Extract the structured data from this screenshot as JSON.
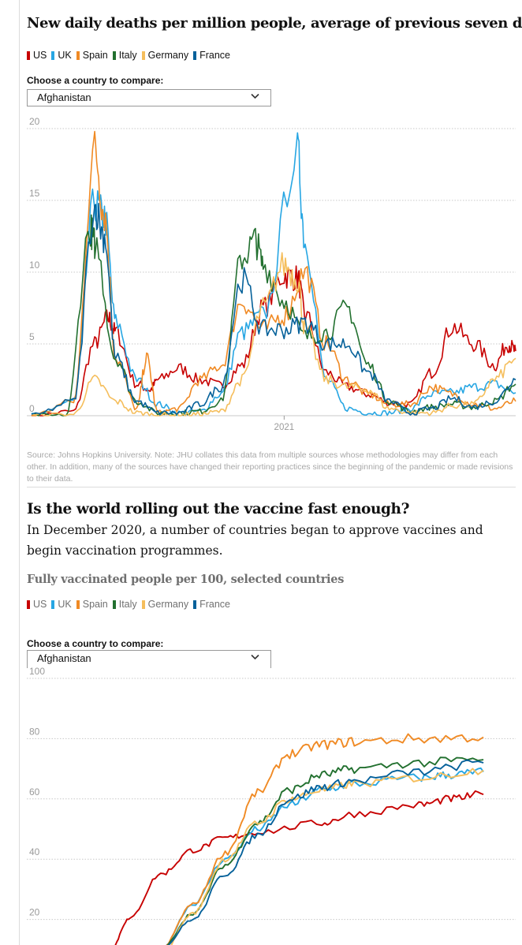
{
  "colors": {
    "US": "#c70000",
    "UK": "#27a6e3",
    "Spain": "#f08a24",
    "Italy": "#22702f",
    "Germany": "#f5be5c",
    "France": "#05619a"
  },
  "section1": {
    "title": "New daily deaths per million people, average of previous seven days",
    "legend": [
      "US",
      "UK",
      "Spain",
      "Italy",
      "Germany",
      "France"
    ],
    "choose_label": "Choose a country to compare:",
    "select_value": "Afghanistan",
    "source": "Source: Johns Hopkins University. Note: JHU collates this data from multiple sources whose methodologies may differ from each other. In addition, many of the sources have changed their reporting practices since the beginning of the pandemic or made revisions to their data."
  },
  "section2": {
    "title": "Is the world rolling out the vaccine fast enough?",
    "standfirst": "In December 2020, a number of countries began to approve vaccines and begin vaccination programmes.",
    "chart_title": "Fully vaccinated people per 100, selected countries",
    "legend": [
      "US",
      "UK",
      "Spain",
      "Italy",
      "Germany",
      "France"
    ],
    "choose_label": "Choose a country to compare:",
    "select_value": "Afghanistan"
  },
  "chart_data": [
    {
      "type": "line",
      "title": "New daily deaths per million people, average of previous seven days",
      "x_unit": "month",
      "x_range": [
        "2020-01",
        "2021-12"
      ],
      "x_ticks": [
        {
          "x": "2021-01",
          "label": "2021"
        }
      ],
      "ylim": [
        0,
        20
      ],
      "y_ticks": [
        0,
        5,
        10,
        15,
        20
      ],
      "grid": true,
      "legend_position": "top-left",
      "series": [
        {
          "name": "US",
          "points": [
            [
              "2020-01",
              0
            ],
            [
              "2020-03",
              0.3
            ],
            [
              "2020-04",
              5
            ],
            [
              "2020-04-20",
              6.8
            ],
            [
              "2020-05",
              5.8
            ],
            [
              "2020-06",
              2.2
            ],
            [
              "2020-06-20",
              1.8
            ],
            [
              "2020-07",
              2.5
            ],
            [
              "2020-08",
              3.3
            ],
            [
              "2020-09",
              2.5
            ],
            [
              "2020-10",
              2.1
            ],
            [
              "2020-11",
              3.5
            ],
            [
              "2020-12",
              7.5
            ],
            [
              "2021-01",
              9.8
            ],
            [
              "2021-01-20",
              9.6
            ],
            [
              "2021-02",
              7.0
            ],
            [
              "2021-03",
              3.0
            ],
            [
              "2021-04",
              2.0
            ],
            [
              "2021-05",
              1.5
            ],
            [
              "2021-06",
              0.9
            ],
            [
              "2021-07",
              0.8
            ],
            [
              "2021-08",
              3.0
            ],
            [
              "2021-09",
              6.2
            ],
            [
              "2021-10",
              5.0
            ],
            [
              "2021-11",
              3.5
            ],
            [
              "2021-11-20",
              5.0
            ],
            [
              "2021-12",
              4.5
            ]
          ]
        },
        {
          "name": "UK",
          "points": [
            [
              "2020-01",
              0
            ],
            [
              "2020-03",
              1.0
            ],
            [
              "2020-04",
              14.8
            ],
            [
              "2020-04-15",
              13.8
            ],
            [
              "2020-05",
              6.5
            ],
            [
              "2020-06",
              2.5
            ],
            [
              "2020-07",
              0.8
            ],
            [
              "2020-08",
              0.2
            ],
            [
              "2020-09",
              0.3
            ],
            [
              "2020-10",
              1.5
            ],
            [
              "2020-11",
              5.8
            ],
            [
              "2020-12",
              7.0
            ],
            [
              "2021-01-20",
              18.2
            ],
            [
              "2021-02",
              12.0
            ],
            [
              "2021-03",
              2.5
            ],
            [
              "2021-04",
              0.5
            ],
            [
              "2021-05",
              0.2
            ],
            [
              "2021-06",
              0.2
            ],
            [
              "2021-07",
              0.5
            ],
            [
              "2021-08",
              1.5
            ],
            [
              "2021-09",
              1.6
            ],
            [
              "2021-10",
              2.0
            ],
            [
              "2021-11",
              2.2
            ],
            [
              "2021-12",
              1.6
            ]
          ]
        },
        {
          "name": "Spain",
          "points": [
            [
              "2020-01",
              0
            ],
            [
              "2020-03",
              1.0
            ],
            [
              "2020-04",
              18.5
            ],
            [
              "2020-04-15",
              14.0
            ],
            [
              "2020-05",
              4.0
            ],
            [
              "2020-06",
              0.5
            ],
            [
              "2020-06-15",
              4.0
            ],
            [
              "2020-07",
              0.2
            ],
            [
              "2020-08",
              0.5
            ],
            [
              "2020-09",
              2.5
            ],
            [
              "2020-10",
              3.5
            ],
            [
              "2020-11",
              8.0
            ],
            [
              "2020-12",
              6.0
            ],
            [
              "2021-01",
              7.0
            ],
            [
              "2021-02",
              10.0
            ],
            [
              "2021-03",
              5.0
            ],
            [
              "2021-04",
              2.5
            ],
            [
              "2021-05",
              1.5
            ],
            [
              "2021-06",
              0.8
            ],
            [
              "2021-07",
              0.8
            ],
            [
              "2021-08",
              2.0
            ],
            [
              "2021-09",
              1.5
            ],
            [
              "2021-10",
              0.8
            ],
            [
              "2021-11",
              0.5
            ],
            [
              "2021-12",
              1.0
            ]
          ]
        },
        {
          "name": "Italy",
          "points": [
            [
              "2020-01",
              0
            ],
            [
              "2020-02-20",
              0
            ],
            [
              "2020-03-25",
              13.0
            ],
            [
              "2020-04",
              12.0
            ],
            [
              "2020-05",
              4.0
            ],
            [
              "2020-06",
              1.0
            ],
            [
              "2020-07",
              0.2
            ],
            [
              "2020-08",
              0.2
            ],
            [
              "2020-09",
              0.3
            ],
            [
              "2020-10",
              1.0
            ],
            [
              "2020-11",
              11.0
            ],
            [
              "2020-11-20",
              12.2
            ],
            [
              "2020-12",
              10.5
            ],
            [
              "2021-01",
              8.0
            ],
            [
              "2021-02",
              5.5
            ],
            [
              "2021-03",
              5.8
            ],
            [
              "2021-04",
              7.5
            ],
            [
              "2021-05",
              3.5
            ],
            [
              "2021-06",
              1.0
            ],
            [
              "2021-07",
              0.3
            ],
            [
              "2021-08",
              0.6
            ],
            [
              "2021-09",
              0.8
            ],
            [
              "2021-10",
              0.6
            ],
            [
              "2021-11",
              1.0
            ],
            [
              "2021-12",
              2.2
            ]
          ]
        },
        {
          "name": "Germany",
          "points": [
            [
              "2020-01",
              0
            ],
            [
              "2020-03",
              0.1
            ],
            [
              "2020-04",
              2.5
            ],
            [
              "2020-05",
              1.0
            ],
            [
              "2020-06",
              0.2
            ],
            [
              "2020-07",
              0.05
            ],
            [
              "2020-08",
              0.05
            ],
            [
              "2020-09",
              0.1
            ],
            [
              "2020-10",
              0.3
            ],
            [
              "2020-11",
              2.5
            ],
            [
              "2020-12",
              7.5
            ],
            [
              "2021-01",
              10.5
            ],
            [
              "2021-01-20",
              9.5
            ],
            [
              "2021-02",
              6.0
            ],
            [
              "2021-03",
              2.5
            ],
            [
              "2021-04",
              2.0
            ],
            [
              "2021-05",
              1.8
            ],
            [
              "2021-06",
              0.5
            ],
            [
              "2021-07",
              0.2
            ],
            [
              "2021-08",
              0.2
            ],
            [
              "2021-09",
              0.7
            ],
            [
              "2021-10",
              0.8
            ],
            [
              "2021-11",
              2.5
            ],
            [
              "2021-12",
              4.0
            ]
          ]
        },
        {
          "name": "France",
          "points": [
            [
              "2020-01",
              0
            ],
            [
              "2020-03",
              1.0
            ],
            [
              "2020-04",
              14.5
            ],
            [
              "2020-04-15",
              12.5
            ],
            [
              "2020-05",
              4.0
            ],
            [
              "2020-06",
              1.0
            ],
            [
              "2020-07",
              0.2
            ],
            [
              "2020-08",
              0.2
            ],
            [
              "2020-09",
              0.8
            ],
            [
              "2020-10",
              2.0
            ],
            [
              "2020-11",
              9.5
            ],
            [
              "2020-12",
              6.0
            ],
            [
              "2021-01",
              6.0
            ],
            [
              "2021-02",
              6.5
            ],
            [
              "2021-03",
              5.0
            ],
            [
              "2021-04",
              5.0
            ],
            [
              "2021-05",
              3.0
            ],
            [
              "2021-06",
              1.0
            ],
            [
              "2021-07",
              0.2
            ],
            [
              "2021-08",
              0.5
            ],
            [
              "2021-09",
              1.2
            ],
            [
              "2021-10",
              0.6
            ],
            [
              "2021-11",
              1.0
            ],
            [
              "2021-12",
              2.5
            ]
          ]
        }
      ]
    },
    {
      "type": "line",
      "title": "Fully vaccinated people per 100, selected countries",
      "x_unit": "month",
      "x_range": [
        "2020-12",
        "2022-03"
      ],
      "ylim": [
        0,
        100
      ],
      "y_ticks": [
        20,
        40,
        60,
        80,
        100
      ],
      "grid": true,
      "legend_position": "top-left",
      "series": [
        {
          "name": "US",
          "points": [
            [
              "2021-02-15",
              10
            ],
            [
              "2021-03",
              20
            ],
            [
              "2021-04",
              35
            ],
            [
              "2021-05",
              43
            ],
            [
              "2021-06",
              47
            ],
            [
              "2021-07",
              49
            ],
            [
              "2021-09",
              52
            ],
            [
              "2021-10",
              55
            ],
            [
              "2021-12",
              58
            ],
            [
              "2022-01",
              60
            ],
            [
              "2022-02",
              61.5
            ]
          ]
        },
        {
          "name": "UK",
          "points": [
            [
              "2021-04",
              10
            ],
            [
              "2021-05",
              25
            ],
            [
              "2021-06",
              40
            ],
            [
              "2021-07",
              50
            ],
            [
              "2021-08",
              58
            ],
            [
              "2021-09",
              63
            ],
            [
              "2021-10",
              65
            ],
            [
              "2021-12",
              67
            ],
            [
              "2022-01",
              68
            ],
            [
              "2022-02",
              69
            ]
          ]
        },
        {
          "name": "Spain",
          "points": [
            [
              "2021-03-15",
              0
            ],
            [
              "2021-04",
              10
            ],
            [
              "2021-05",
              25
            ],
            [
              "2021-06",
              42
            ],
            [
              "2021-07",
              62
            ],
            [
              "2021-08",
              75
            ],
            [
              "2021-09",
              78
            ],
            [
              "2021-10",
              79
            ],
            [
              "2021-12",
              80
            ],
            [
              "2022-02",
              80.5
            ]
          ]
        },
        {
          "name": "Italy",
          "points": [
            [
              "2021-03",
              0
            ],
            [
              "2021-04",
              10
            ],
            [
              "2021-05",
              22
            ],
            [
              "2021-06",
              38
            ],
            [
              "2021-07",
              52
            ],
            [
              "2021-08",
              63
            ],
            [
              "2021-09",
              68
            ],
            [
              "2021-10",
              70
            ],
            [
              "2021-12",
              72
            ],
            [
              "2022-02",
              73
            ]
          ]
        },
        {
          "name": "Germany",
          "points": [
            [
              "2021-03",
              0
            ],
            [
              "2021-04",
              8
            ],
            [
              "2021-05",
              22
            ],
            [
              "2021-06",
              40
            ],
            [
              "2021-07",
              52
            ],
            [
              "2021-08",
              60
            ],
            [
              "2021-09",
              63
            ],
            [
              "2021-10",
              65
            ],
            [
              "2021-12",
              67
            ],
            [
              "2022-02",
              69.5
            ]
          ]
        },
        {
          "name": "France",
          "points": [
            [
              "2021-03",
              0
            ],
            [
              "2021-04",
              10
            ],
            [
              "2021-05",
              20
            ],
            [
              "2021-06",
              35
            ],
            [
              "2021-07",
              48
            ],
            [
              "2021-08",
              60
            ],
            [
              "2021-09",
              64
            ],
            [
              "2021-10",
              66
            ],
            [
              "2021-12",
              69
            ],
            [
              "2022-02",
              72
            ]
          ]
        }
      ]
    }
  ]
}
